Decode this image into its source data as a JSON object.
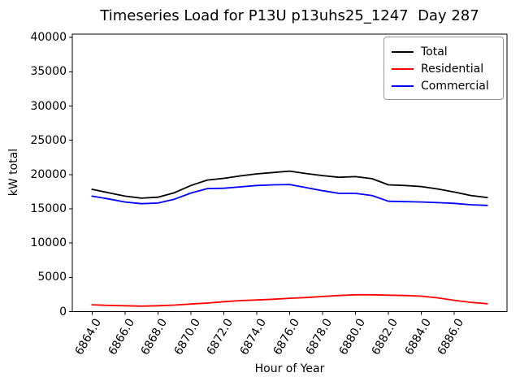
{
  "chart_data": {
    "type": "line",
    "title": "Timeseries Load for P13U p13uhs25_1247  Day 287",
    "xlabel": "Hour of Year",
    "ylabel": "kW total",
    "xlim": [
      6862.8,
      6889.2
    ],
    "ylim": [
      0,
      40500
    ],
    "grid": false,
    "x_tick_values": [
      6864,
      6866,
      6868,
      6870,
      6872,
      6874,
      6876,
      6878,
      6880,
      6882,
      6884,
      6886
    ],
    "x_tick_labels": [
      "6864.0",
      "6866.0",
      "6868.0",
      "6870.0",
      "6872.0",
      "6874.0",
      "6876.0",
      "6878.0",
      "6880.0",
      "6882.0",
      "6884.0",
      "6886.0"
    ],
    "y_tick_values": [
      0,
      5000,
      10000,
      15000,
      20000,
      25000,
      30000,
      35000,
      40000
    ],
    "y_tick_labels": [
      "0",
      "5000",
      "10000",
      "15000",
      "20000",
      "25000",
      "30000",
      "35000",
      "40000"
    ],
    "x": [
      6864,
      6865,
      6866,
      6867,
      6868,
      6869,
      6870,
      6871,
      6872,
      6873,
      6874,
      6875,
      6876,
      6877,
      6878,
      6879,
      6880,
      6881,
      6882,
      6883,
      6884,
      6885,
      6886,
      6887,
      6888
    ],
    "series": [
      {
        "name": "Total",
        "color": "#000000",
        "values": [
          17850,
          17350,
          16850,
          16550,
          16700,
          17350,
          18400,
          19200,
          19450,
          19800,
          20100,
          20300,
          20500,
          20150,
          19850,
          19600,
          19700,
          19400,
          18500,
          18400,
          18250,
          17900,
          17450,
          16950,
          16650
        ]
      },
      {
        "name": "Residential",
        "color": "#ff0000",
        "values": [
          1000,
          900,
          850,
          800,
          850,
          950,
          1100,
          1250,
          1450,
          1600,
          1700,
          1800,
          1950,
          2050,
          2200,
          2350,
          2450,
          2450,
          2400,
          2350,
          2250,
          2000,
          1650,
          1350,
          1150
        ]
      },
      {
        "name": "Commercial",
        "color": "#0000ff",
        "values": [
          16850,
          16450,
          16000,
          15750,
          15850,
          16400,
          17300,
          17950,
          18000,
          18200,
          18400,
          18500,
          18550,
          18100,
          17650,
          17250,
          17250,
          16950,
          16100,
          16050,
          16000,
          15900,
          15800,
          15600,
          15500
        ]
      }
    ],
    "legend_position": "upper right"
  }
}
